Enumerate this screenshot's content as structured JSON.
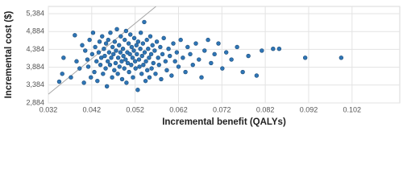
{
  "chart_data": {
    "type": "scatter",
    "x_label": "Incremental benefit (QALYs)",
    "y_label": "Incremental cost ($)",
    "xlim": [
      0.032,
      0.113
    ],
    "ylim": [
      2884,
      5587
    ],
    "xticks": [
      0.032,
      0.042,
      0.052,
      0.062,
      0.072,
      0.082,
      0.092,
      0.102
    ],
    "yticks": [
      {
        "value": 2884,
        "label": "2,884"
      },
      {
        "value": 3384,
        "label": "3,384"
      },
      {
        "value": 3884,
        "label": "3,884"
      },
      {
        "value": 4384,
        "label": "4,384"
      },
      {
        "value": 4884,
        "label": "4,884"
      },
      {
        "value": 5384,
        "label": "5,384"
      }
    ],
    "grid": true,
    "color": "#2e75b6",
    "reference_line": {
      "color": "#a6a6a6",
      "x": [
        0.032,
        0.0568
      ],
      "y": [
        3130,
        5587
      ]
    },
    "x": [
      0.0345,
      0.0352,
      0.0355,
      0.0372,
      0.0381,
      0.0385,
      0.0392,
      0.0398,
      0.0402,
      0.0405,
      0.041,
      0.0412,
      0.0415,
      0.0418,
      0.0421,
      0.0423,
      0.0426,
      0.0428,
      0.0431,
      0.0433,
      0.0436,
      0.0438,
      0.044,
      0.0442,
      0.0444,
      0.0446,
      0.0448,
      0.045,
      0.0452,
      0.0453,
      0.0455,
      0.0457,
      0.0458,
      0.046,
      0.0462,
      0.0463,
      0.0465,
      0.0467,
      0.0468,
      0.047,
      0.0472,
      0.0473,
      0.0475,
      0.0476,
      0.0478,
      0.048,
      0.0481,
      0.0483,
      0.0484,
      0.0486,
      0.0487,
      0.0489,
      0.049,
      0.0492,
      0.0493,
      0.0495,
      0.0496,
      0.0498,
      0.0499,
      0.05,
      0.0502,
      0.0503,
      0.0505,
      0.0506,
      0.0508,
      0.0509,
      0.0511,
      0.0512,
      0.0514,
      0.0515,
      0.0517,
      0.0518,
      0.052,
      0.0521,
      0.0523,
      0.0524,
      0.0526,
      0.0527,
      0.0529,
      0.053,
      0.0532,
      0.0533,
      0.0535,
      0.0536,
      0.0538,
      0.0539,
      0.0541,
      0.0542,
      0.0544,
      0.0545,
      0.0547,
      0.0548,
      0.055,
      0.0552,
      0.0553,
      0.0555,
      0.0557,
      0.0558,
      0.056,
      0.0562,
      0.0565,
      0.0567,
      0.057,
      0.0573,
      0.0575,
      0.0578,
      0.058,
      0.0583,
      0.0586,
      0.059,
      0.0593,
      0.0597,
      0.06,
      0.0604,
      0.0608,
      0.0612,
      0.0616,
      0.062,
      0.0625,
      0.063,
      0.0636,
      0.0641,
      0.0647,
      0.0653,
      0.066,
      0.0667,
      0.0673,
      0.068,
      0.0688,
      0.0695,
      0.0703,
      0.0712,
      0.0721,
      0.073,
      0.0742,
      0.0755,
      0.0768,
      0.0781,
      0.08,
      0.0812,
      0.0838,
      0.0852,
      0.0912,
      0.0995
    ],
    "values": [
      3480,
      3700,
      4150,
      3600,
      4780,
      4050,
      3850,
      4500,
      3450,
      4350,
      4100,
      3900,
      4650,
      3600,
      4250,
      4850,
      3750,
      4450,
      4050,
      3500,
      4300,
      4600,
      3950,
      4150,
      4750,
      3700,
      4400,
      4200,
      3850,
      4550,
      3350,
      4050,
      4650,
      4300,
      3950,
      4850,
      4150,
      3600,
      4450,
      4250,
      3800,
      4600,
      4000,
      4350,
      4950,
      3700,
      4150,
      4500,
      3900,
      4300,
      4750,
      4050,
      3550,
      4400,
      4200,
      3850,
      4650,
      4100,
      4900,
      3450,
      4300,
      4000,
      4550,
      3750,
      4250,
      4800,
      3950,
      4450,
      4150,
      3600,
      4350,
      4700,
      4050,
      3850,
      4500,
      4250,
      3250,
      4600,
      4100,
      3900,
      4400,
      4850,
      3700,
      4200,
      4550,
      3950,
      5150,
      4300,
      3500,
      4050,
      4650,
      3800,
      4400,
      4150,
      3600,
      4750,
      4250,
      3850,
      4500,
      4000,
      4350,
      3700,
      4600,
      4150,
      3950,
      4450,
      3550,
      4250,
      4700,
      4050,
      3800,
      4400,
      4200,
      3650,
      4550,
      4050,
      4300,
      3900,
      4650,
      4150,
      3750,
      4450,
      4250,
      3950,
      4550,
      4100,
      3600,
      4350,
      4650,
      4000,
      4250,
      4550,
      3850,
      4300,
      4100,
      4450,
      3750,
      4200,
      3650,
      4350,
      4400,
      4400,
      4150,
      4150
    ]
  }
}
